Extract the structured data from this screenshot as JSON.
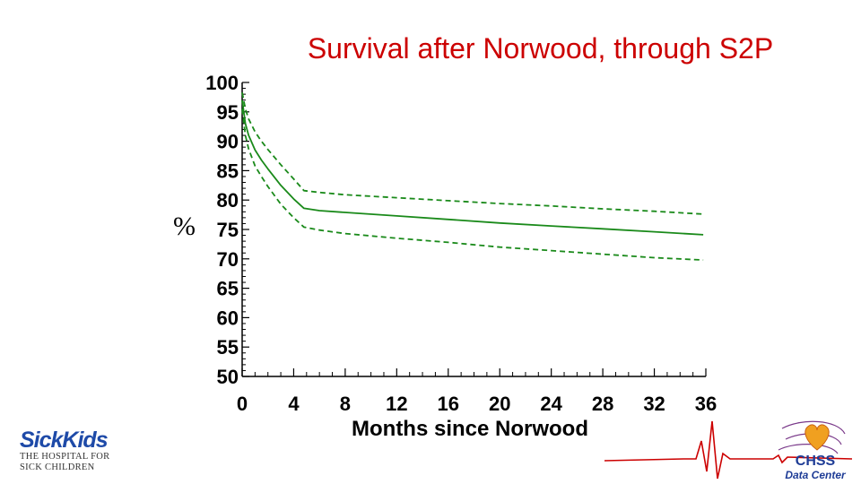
{
  "slide": {
    "title": "Survival after Norwood, through S2P"
  },
  "chart_data": {
    "type": "line",
    "title": "Survival after Norwood, through S2P",
    "xlabel": "Months since Norwood",
    "ylabel": "%",
    "xlim": [
      0,
      36
    ],
    "ylim": [
      50,
      100
    ],
    "x_ticks": [
      0,
      4,
      8,
      12,
      16,
      20,
      24,
      28,
      32,
      36
    ],
    "y_ticks": [
      50,
      55,
      60,
      65,
      70,
      75,
      80,
      85,
      90,
      95,
      100
    ],
    "grid": false,
    "series": [
      {
        "role": "estimate",
        "style": "solid",
        "color": "#1a8a1a",
        "points": [
          [
            0,
            97
          ],
          [
            0.25,
            93
          ],
          [
            0.5,
            91
          ],
          [
            1,
            88.5
          ],
          [
            1.5,
            86.8
          ],
          [
            2,
            85.3
          ],
          [
            3,
            82.5
          ],
          [
            4,
            80.2
          ],
          [
            4.8,
            78.6
          ],
          [
            6,
            78.2
          ],
          [
            8,
            77.9
          ],
          [
            12,
            77.3
          ],
          [
            16,
            76.7
          ],
          [
            20,
            76.1
          ],
          [
            24,
            75.6
          ],
          [
            28,
            75.1
          ],
          [
            32,
            74.6
          ],
          [
            35.8,
            74.1
          ]
        ]
      },
      {
        "role": "upper confidence limit",
        "style": "dashed",
        "color": "#1a8a1a",
        "points": [
          [
            0,
            98.3
          ],
          [
            0.25,
            95.5
          ],
          [
            0.5,
            93.8
          ],
          [
            1,
            91.6
          ],
          [
            1.5,
            90
          ],
          [
            2,
            88.6
          ],
          [
            3,
            86
          ],
          [
            4,
            83.6
          ],
          [
            4.8,
            81.6
          ],
          [
            6,
            81.3
          ],
          [
            8,
            80.9
          ],
          [
            12,
            80.4
          ],
          [
            16,
            79.9
          ],
          [
            20,
            79.4
          ],
          [
            24,
            79
          ],
          [
            28,
            78.5
          ],
          [
            32,
            78.1
          ],
          [
            35.8,
            77.6
          ]
        ]
      },
      {
        "role": "lower confidence limit",
        "style": "dashed",
        "color": "#1a8a1a",
        "points": [
          [
            0,
            95.5
          ],
          [
            0.25,
            91
          ],
          [
            0.5,
            88.7
          ],
          [
            1,
            85.8
          ],
          [
            1.5,
            84
          ],
          [
            2,
            82.3
          ],
          [
            3,
            79.3
          ],
          [
            4,
            77
          ],
          [
            4.8,
            75.4
          ],
          [
            6,
            74.9
          ],
          [
            8,
            74.3
          ],
          [
            12,
            73.5
          ],
          [
            16,
            72.8
          ],
          [
            20,
            72
          ],
          [
            24,
            71.4
          ],
          [
            28,
            70.8
          ],
          [
            32,
            70.2
          ],
          [
            35.8,
            69.8
          ]
        ]
      }
    ]
  },
  "logos": {
    "left": {
      "brand": "SickKids",
      "line1": "THE HOSPITAL FOR",
      "line2": "SICK CHILDREN",
      "color": "#1e4aa8"
    },
    "right": {
      "brand": "CHSS",
      "sub": "Data Center",
      "color": "#1e3c96",
      "heart_color": "#f0a020",
      "ecg_color": "#cc0000"
    }
  }
}
